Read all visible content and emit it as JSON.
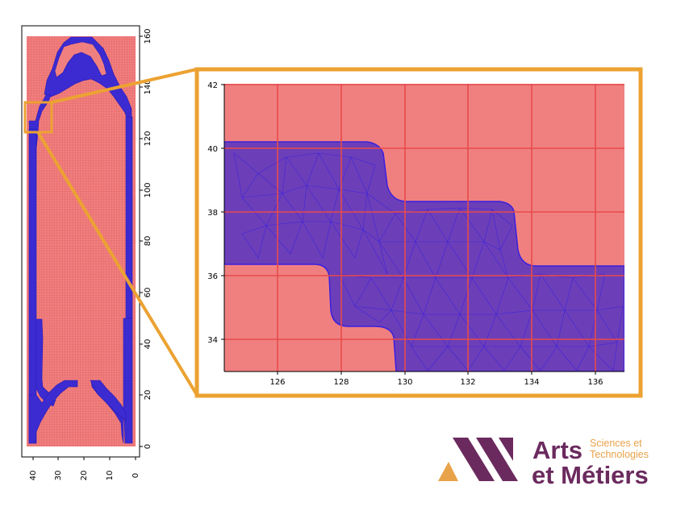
{
  "left_plot": {
    "y_ticks": [
      "0",
      "20",
      "40",
      "60",
      "80",
      "100",
      "120",
      "140",
      "160"
    ],
    "x_ticks": [
      "40",
      "30",
      "20",
      "10",
      "0"
    ]
  },
  "zoom_plot": {
    "x_ticks": [
      "126",
      "128",
      "130",
      "132",
      "134",
      "136"
    ],
    "y_ticks": [
      "34",
      "36",
      "38",
      "40",
      "42"
    ]
  },
  "colors": {
    "background_region": "#f08080",
    "grid_lines": "#e84a4a",
    "mesh_fill": "#6c3fb8",
    "mesh_edges": "#3b1fe0",
    "highlight_frame": "#eca232",
    "logo_purple": "#6b2a5e",
    "logo_orange": "#e8a24a"
  },
  "logo": {
    "line1": "Arts",
    "sub1": "Sciences et",
    "sub2": "Technologies",
    "line2": "et Métiers"
  }
}
